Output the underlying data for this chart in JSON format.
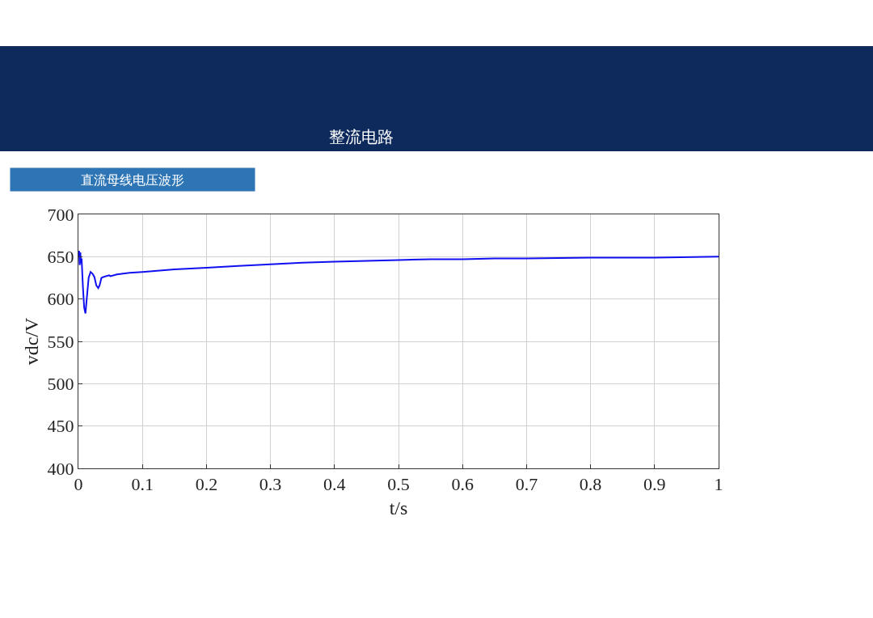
{
  "chart_data": {
    "type": "line",
    "title": "整流电路",
    "subtitle": "直流母线电压波形",
    "xlabel": "t/s",
    "ylabel": "vdc/V",
    "x": [
      0,
      0.001,
      0.002,
      0.003,
      0.004,
      0.005,
      0.007,
      0.009,
      0.011,
      0.013,
      0.016,
      0.019,
      0.022,
      0.025,
      0.028,
      0.031,
      0.033,
      0.036,
      0.039,
      0.043,
      0.048,
      0.05,
      0.06,
      0.08,
      0.1,
      0.15,
      0.2,
      0.25,
      0.3,
      0.35,
      0.4,
      0.45,
      0.5,
      0.55,
      0.6,
      0.65,
      0.7,
      0.8,
      0.9,
      1
    ],
    "series": [
      {
        "color": "#1010f0",
        "values": [
          650,
          657,
          640,
          655,
          642,
          648,
          615,
          590,
          583,
          600,
          625,
          632,
          630,
          626,
          616,
          613,
          616,
          625,
          626,
          627,
          628,
          627,
          629,
          631,
          632,
          635,
          637,
          639,
          641,
          643,
          644,
          645,
          646,
          647,
          647,
          648,
          648,
          649,
          649,
          650
        ]
      }
    ],
    "xlim": [
      0,
      1
    ],
    "xticks": [
      0,
      0.1,
      0.2,
      0.3,
      0.4,
      0.5,
      0.6,
      0.7,
      0.8,
      0.9,
      1
    ],
    "ylim": [
      400,
      700
    ],
    "yticks": [
      400,
      450,
      500,
      550,
      600,
      650,
      700
    ],
    "grid": true,
    "marker": "none",
    "line_style": "solid"
  }
}
